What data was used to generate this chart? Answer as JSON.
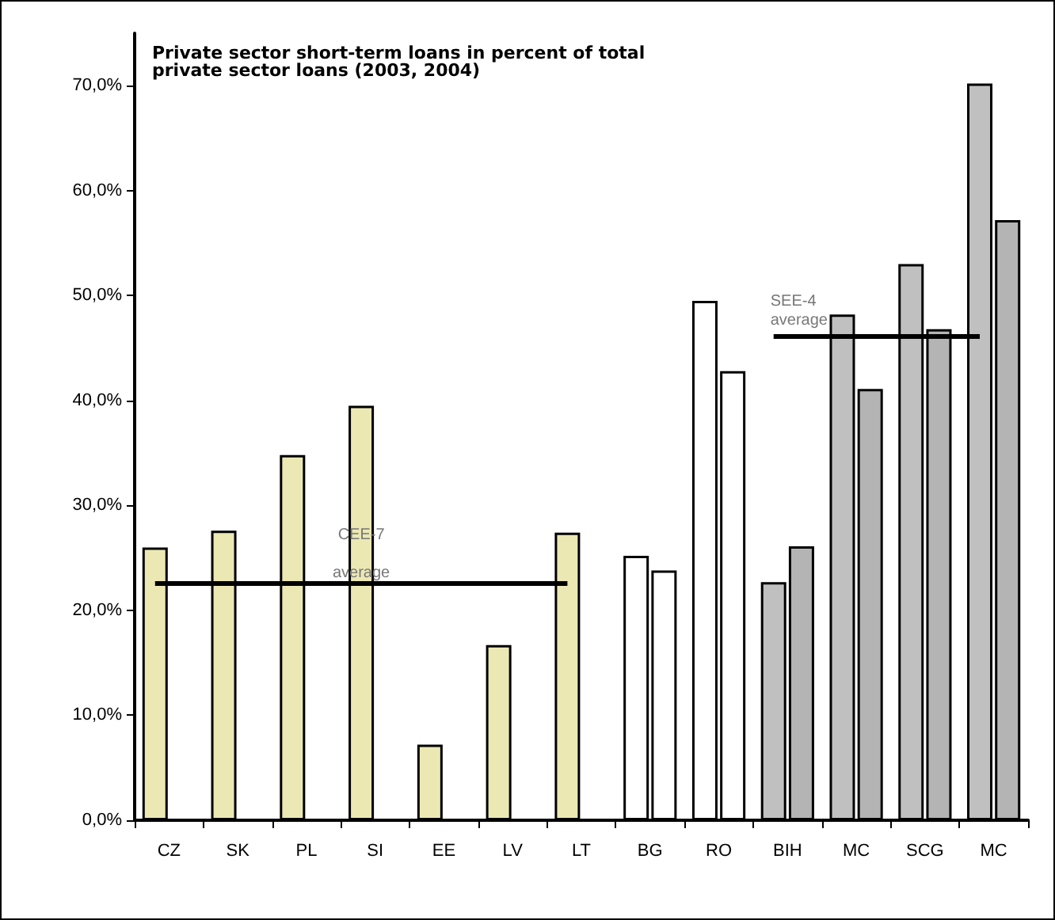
{
  "chart_data": {
    "type": "bar",
    "title": "Private sector short-term loans in percent of total private sector loans (2003, 2004)",
    "categories": [
      "CZ",
      "SK",
      "PL",
      "SI",
      "EE",
      "LV",
      "LT",
      "BG",
      "RO",
      "BIH",
      "MC",
      "SCG",
      "MC"
    ],
    "series": [
      {
        "colors": [
          "#ece8b4",
          "#ece8b4",
          "#ece8b4",
          "#ece8b4",
          "#ece8b4",
          "#ece8b4",
          "#ece8b4",
          "#ffffff",
          "#ffffff",
          "#c0c0c0",
          "#c0c0c0",
          "#c0c0c0",
          "#c0c0c0"
        ],
        "values": [
          26.0,
          27.6,
          34.8,
          39.5,
          7.2,
          16.7,
          27.4,
          25.2,
          49.5,
          22.7,
          48.2,
          53.0,
          70.2
        ]
      },
      {
        "colors": [
          null,
          null,
          null,
          null,
          null,
          null,
          null,
          "#ffffff",
          "#ffffff",
          "#b4b4b4",
          "#b4b4b4",
          "#b4b4b4",
          "#b4b4b4"
        ],
        "values": [
          null,
          null,
          null,
          null,
          null,
          null,
          null,
          23.8,
          42.8,
          26.1,
          41.1,
          46.8,
          57.2
        ]
      }
    ],
    "ylim": [
      0,
      75
    ],
    "yticks": [
      {
        "value": 0,
        "label": "0,0%"
      },
      {
        "value": 10,
        "label": "10,0%"
      },
      {
        "value": 20,
        "label": "20,0%"
      },
      {
        "value": 30,
        "label": "30,0%"
      },
      {
        "value": 40,
        "label": "40,0%"
      },
      {
        "value": 50,
        "label": "50,0%"
      },
      {
        "value": 60,
        "label": "60,0%"
      },
      {
        "value": 70,
        "label": "70,0%"
      }
    ],
    "ref_lines": [
      {
        "axis": "y",
        "value": 22.6,
        "label": "CEE-7 average",
        "color": "#000000"
      },
      {
        "axis": "y",
        "value": 46.1,
        "label": "SEE-4 average",
        "color": "#000000"
      }
    ],
    "grid": false
  }
}
